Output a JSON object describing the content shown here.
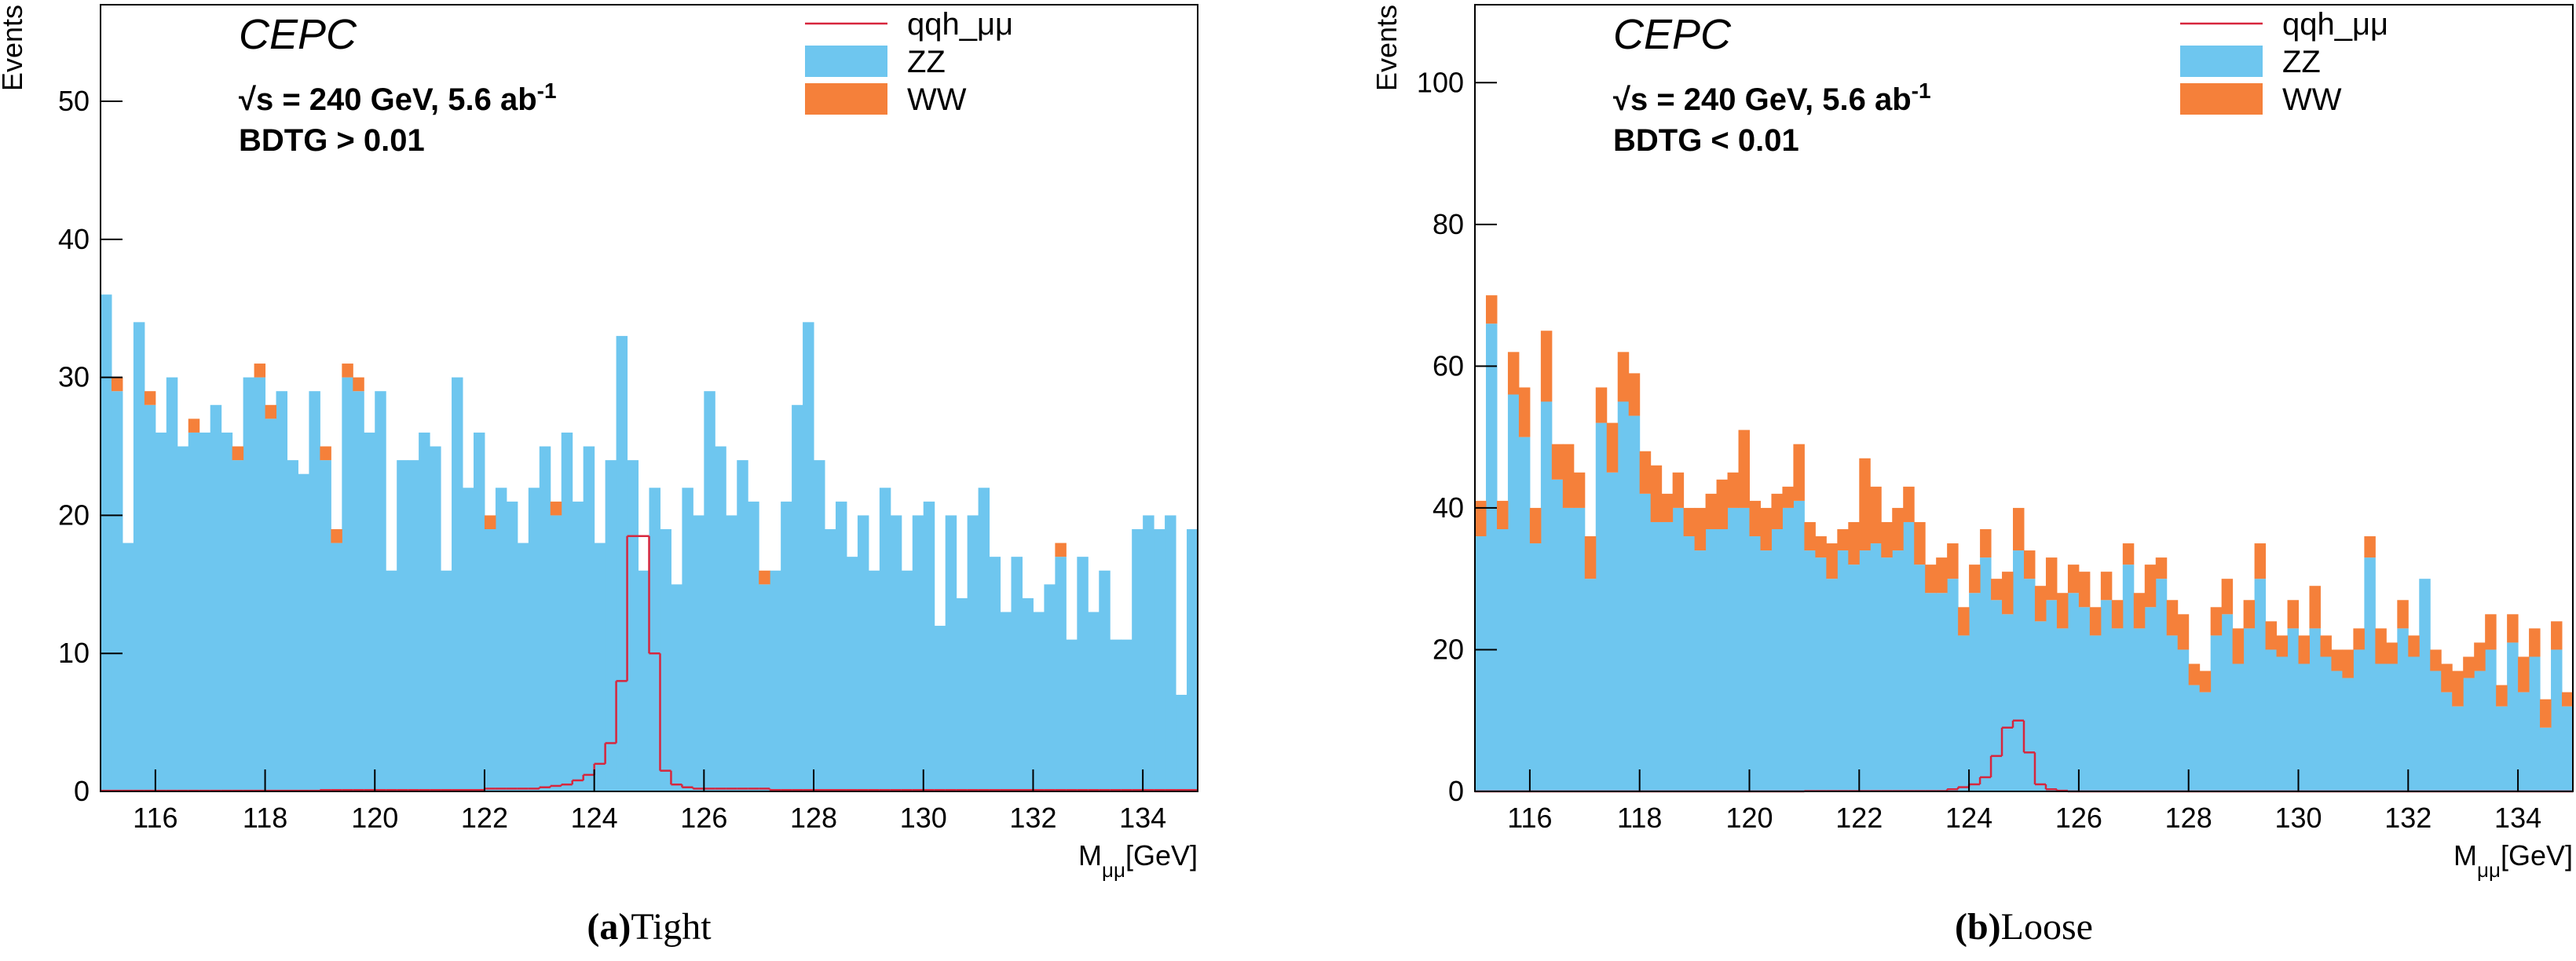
{
  "chart_data": [
    {
      "type": "histogram",
      "stacked": true,
      "legend": "top-right",
      "caption": {
        "label": "(a)",
        "text": "Tight"
      },
      "experiment": "CEPC",
      "energy_label": {
        "text": "√s = 240 GeV, 5.6 ab",
        "superscript": "-1"
      },
      "cut_label": "BDTG > 0.01",
      "y_label": "Events",
      "x_label": {
        "text": "M",
        "subscript": "μμ",
        "unit": "[GeV]"
      },
      "xlim": [
        115,
        135
      ],
      "xticks": [
        116,
        118,
        120,
        122,
        124,
        126,
        128,
        130,
        132,
        134
      ],
      "ylim": [
        0,
        57
      ],
      "yticks": [
        0,
        10,
        20,
        30,
        40,
        50
      ],
      "bins": [
        115,
        115.2,
        115.4,
        115.6,
        115.8,
        116,
        116.2,
        116.4,
        116.6,
        116.8,
        117,
        117.2,
        117.4,
        117.6,
        117.8,
        118,
        118.2,
        118.4,
        118.6,
        118.8,
        119,
        119.2,
        119.4,
        119.6,
        119.8,
        120,
        120.2,
        120.4,
        120.6,
        120.8,
        121,
        121.2,
        121.4,
        121.6,
        121.8,
        122,
        122.2,
        122.4,
        122.6,
        122.8,
        123,
        123.2,
        123.4,
        123.6,
        123.8,
        124,
        124.2,
        124.4,
        124.6,
        124.8,
        125,
        125.2,
        125.4,
        125.6,
        125.8,
        126,
        126.2,
        126.4,
        126.6,
        126.8,
        127,
        127.2,
        127.4,
        127.6,
        127.8,
        128,
        128.2,
        128.4,
        128.6,
        128.8,
        129,
        129.2,
        129.4,
        129.6,
        129.8,
        130,
        130.2,
        130.4,
        130.6,
        130.8,
        131,
        131.2,
        131.4,
        131.6,
        131.8,
        132,
        132.2,
        132.4,
        132.6,
        132.8,
        133,
        133.2,
        133.4,
        133.6,
        133.8,
        134,
        134.2,
        134.4,
        134.6,
        134.8,
        135
      ],
      "series": [
        {
          "name": "qqh_μμ",
          "style": "step",
          "color": "#d7263d",
          "values": [
            0.05,
            0.05,
            0.05,
            0.05,
            0.05,
            0.05,
            0.05,
            0.05,
            0.05,
            0.05,
            0.05,
            0.05,
            0.05,
            0.05,
            0.05,
            0.05,
            0.05,
            0.05,
            0.05,
            0.05,
            0.1,
            0.1,
            0.1,
            0.1,
            0.1,
            0.1,
            0.1,
            0.1,
            0.1,
            0.1,
            0.1,
            0.1,
            0.1,
            0.1,
            0.1,
            0.2,
            0.2,
            0.2,
            0.2,
            0.2,
            0.3,
            0.4,
            0.5,
            0.8,
            1.2,
            2,
            3.5,
            8,
            18.5,
            18.5,
            10,
            1.5,
            0.5,
            0.3,
            0.2,
            0.2,
            0.2,
            0.2,
            0.2,
            0.2,
            0.2,
            0.1,
            0.1,
            0.1,
            0.1,
            0.1,
            0.1,
            0.1,
            0.1,
            0.1,
            0.1,
            0.1,
            0.1,
            0.1,
            0.1,
            0.1,
            0.1,
            0.1,
            0.1,
            0.1,
            0.1,
            0.1,
            0.1,
            0.1,
            0.1,
            0.1,
            0.1,
            0.1,
            0.1,
            0.1,
            0.1,
            0.1,
            0.1,
            0.1,
            0.1,
            0.1,
            0.1,
            0.1,
            0.1,
            0.1
          ]
        },
        {
          "name": "ZZ",
          "style": "fill",
          "color": "#6ec6ef",
          "values": [
            36,
            29,
            18,
            34,
            28,
            26,
            30,
            25,
            26,
            26,
            28,
            26,
            24,
            30,
            30,
            27,
            29,
            24,
            23,
            29,
            24,
            18,
            30,
            29,
            26,
            29,
            16,
            24,
            24,
            26,
            25,
            16,
            30,
            22,
            26,
            19,
            22,
            21,
            18,
            22,
            25,
            20,
            26,
            21,
            25,
            18,
            24,
            33,
            24,
            16,
            22,
            19,
            15,
            22,
            20,
            29,
            25,
            20,
            24,
            21,
            15,
            16,
            21,
            28,
            34,
            24,
            19,
            21,
            17,
            20,
            16,
            22,
            20,
            16,
            20,
            21,
            12,
            20,
            14,
            20,
            22,
            17,
            13,
            17,
            14,
            13,
            15,
            17,
            11,
            17,
            13,
            16,
            11,
            11,
            19,
            20,
            19,
            20,
            7,
            19
          ]
        },
        {
          "name": "WW",
          "style": "fill",
          "color": "#f5803a",
          "values": [
            0,
            1,
            0,
            0,
            1,
            0,
            0,
            0,
            1,
            0,
            0,
            0,
            1,
            0,
            1,
            1,
            0,
            0,
            0,
            0,
            1,
            1,
            1,
            1,
            0,
            0,
            0,
            0,
            0,
            0,
            0,
            0,
            0,
            0,
            0,
            1,
            0,
            0,
            0,
            0,
            0,
            1,
            0,
            0,
            0,
            0,
            0,
            0,
            0,
            0,
            0,
            0,
            0,
            0,
            0,
            0,
            0,
            0,
            0,
            0,
            1,
            0,
            0,
            0,
            0,
            0,
            0,
            0,
            0,
            0,
            0,
            0,
            0,
            0,
            0,
            0,
            0,
            0,
            0,
            0,
            0,
            0,
            0,
            0,
            0,
            0,
            0,
            1,
            0,
            0,
            0,
            0,
            0,
            0,
            0,
            0,
            0,
            0,
            0,
            0
          ]
        }
      ]
    },
    {
      "type": "histogram",
      "stacked": true,
      "legend": "top-right",
      "caption": {
        "label": "(b)",
        "text": "Loose"
      },
      "experiment": "CEPC",
      "energy_label": {
        "text": "√s = 240 GeV, 5.6 ab",
        "superscript": "-1"
      },
      "cut_label": "BDTG < 0.01",
      "y_label": "Events",
      "x_label": {
        "text": "M",
        "subscript": "μμ",
        "unit": "[GeV]"
      },
      "xlim": [
        115,
        135
      ],
      "xticks": [
        116,
        118,
        120,
        122,
        124,
        126,
        128,
        130,
        132,
        134
      ],
      "ylim": [
        0,
        111
      ],
      "yticks": [
        0,
        20,
        40,
        60,
        80,
        100
      ],
      "bins": [
        115,
        115.2,
        115.4,
        115.6,
        115.8,
        116,
        116.2,
        116.4,
        116.6,
        116.8,
        117,
        117.2,
        117.4,
        117.6,
        117.8,
        118,
        118.2,
        118.4,
        118.6,
        118.8,
        119,
        119.2,
        119.4,
        119.6,
        119.8,
        120,
        120.2,
        120.4,
        120.6,
        120.8,
        121,
        121.2,
        121.4,
        121.6,
        121.8,
        122,
        122.2,
        122.4,
        122.6,
        122.8,
        123,
        123.2,
        123.4,
        123.6,
        123.8,
        124,
        124.2,
        124.4,
        124.6,
        124.8,
        125,
        125.2,
        125.4,
        125.6,
        125.8,
        126,
        126.2,
        126.4,
        126.6,
        126.8,
        127,
        127.2,
        127.4,
        127.6,
        127.8,
        128,
        128.2,
        128.4,
        128.6,
        128.8,
        129,
        129.2,
        129.4,
        129.6,
        129.8,
        130,
        130.2,
        130.4,
        130.6,
        130.8,
        131,
        131.2,
        131.4,
        131.6,
        131.8,
        132,
        132.2,
        132.4,
        132.6,
        132.8,
        133,
        133.2,
        133.4,
        133.6,
        133.8,
        134,
        134.2,
        134.4,
        134.6,
        134.8,
        135
      ],
      "series": [
        {
          "name": "qqh_μμ",
          "style": "step",
          "color": "#d7263d",
          "values": [
            0,
            0,
            0,
            0,
            0,
            0,
            0,
            0,
            0,
            0,
            0,
            0,
            0,
            0,
            0,
            0,
            0,
            0,
            0,
            0,
            0,
            0,
            0,
            0,
            0,
            0,
            0,
            0,
            0,
            0,
            0.05,
            0.05,
            0.05,
            0.05,
            0.05,
            0.05,
            0.05,
            0.05,
            0.05,
            0.05,
            0.05,
            0.05,
            0.05,
            0.3,
            0.6,
            1,
            2,
            5,
            9,
            10,
            5.5,
            1,
            0.3,
            0.1,
            0,
            0,
            0,
            0,
            0,
            0,
            0,
            0,
            0,
            0,
            0,
            0,
            0,
            0,
            0,
            0,
            0,
            0,
            0,
            0,
            0,
            0,
            0,
            0,
            0,
            0,
            0,
            0,
            0,
            0,
            0,
            0,
            0,
            0,
            0,
            0,
            0,
            0,
            0,
            0,
            0,
            0,
            0,
            0,
            0,
            0
          ]
        },
        {
          "name": "ZZ",
          "style": "fill",
          "color": "#6ec6ef",
          "values": [
            36,
            66,
            37,
            56,
            50,
            35,
            55,
            44,
            40,
            40,
            30,
            52,
            45,
            55,
            53,
            42,
            38,
            38,
            40,
            36,
            34,
            37,
            37,
            40,
            40,
            36,
            34,
            37,
            40,
            41,
            34,
            33,
            30,
            34,
            32,
            34,
            35,
            33,
            34,
            38,
            32,
            28,
            28,
            30,
            22,
            28,
            33,
            27,
            25,
            34,
            30,
            24,
            27,
            23,
            28,
            26,
            22,
            27,
            23,
            32,
            23,
            26,
            30,
            22,
            20,
            15,
            14,
            22,
            25,
            18,
            23,
            30,
            20,
            19,
            23,
            18,
            23,
            19,
            17,
            16,
            20,
            33,
            18,
            18,
            23,
            19,
            30,
            17,
            14,
            12,
            16,
            17,
            20,
            12,
            21,
            14,
            19,
            9,
            20,
            12
          ]
        },
        {
          "name": "WW",
          "style": "fill",
          "color": "#f5803a",
          "values": [
            5,
            4,
            4,
            6,
            7,
            5,
            10,
            5,
            9,
            5,
            6,
            5,
            7,
            7,
            6,
            6,
            8,
            4,
            5,
            4,
            6,
            5,
            7,
            5,
            11,
            5,
            6,
            5,
            3,
            8,
            4,
            3,
            5,
            3,
            6,
            13,
            8,
            5,
            6,
            5,
            6,
            4,
            5,
            5,
            4,
            4,
            4,
            3,
            6,
            6,
            4,
            5,
            6,
            5,
            4,
            5,
            4,
            4,
            4,
            3,
            5,
            6,
            3,
            5,
            5,
            3,
            3,
            4,
            5,
            5,
            4,
            5,
            4,
            3,
            4,
            4,
            6,
            3,
            3,
            4,
            3,
            3,
            5,
            3,
            4,
            3,
            0,
            3,
            4,
            5,
            3,
            4,
            5,
            3,
            4,
            5,
            4,
            4,
            4,
            2
          ]
        }
      ]
    }
  ]
}
